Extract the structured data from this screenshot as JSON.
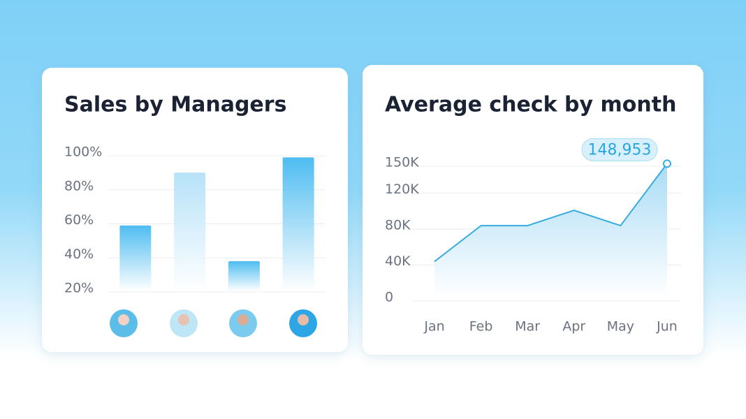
{
  "chart_data": [
    {
      "type": "bar",
      "title": "Sales by Managers",
      "categories": [
        null,
        null,
        null,
        null
      ],
      "values": [
        57,
        88,
        36,
        97
      ],
      "color": "#3bb5ef",
      "ylim": [
        20,
        100
      ],
      "yticks": [
        {
          "value": 20,
          "label": "20%"
        },
        {
          "value": 40,
          "label": "40%"
        },
        {
          "value": 60,
          "label": "60%"
        },
        {
          "value": 80,
          "label": "80%"
        },
        {
          "value": 100,
          "label": "100%"
        }
      ],
      "grid": true
    },
    {
      "type": "line",
      "title": "Average check by month",
      "categories": [
        "Jan",
        "Feb",
        "Mar",
        "Apr",
        "May",
        "Jun"
      ],
      "values": [
        40000,
        80000,
        80000,
        97000,
        80000,
        148953
      ],
      "value_labels": [
        null,
        null,
        null,
        null,
        null,
        "148,953"
      ],
      "color": "#36abde",
      "ylim": [
        0,
        150000
      ],
      "yticks": [
        0,
        {
          "value": 40000,
          "label": "40K"
        },
        {
          "value": 80000,
          "label": "80K"
        },
        {
          "value": 120000,
          "label": "120K"
        },
        {
          "value": 150000,
          "label": "150K"
        }
      ],
      "grid": true
    }
  ]
}
